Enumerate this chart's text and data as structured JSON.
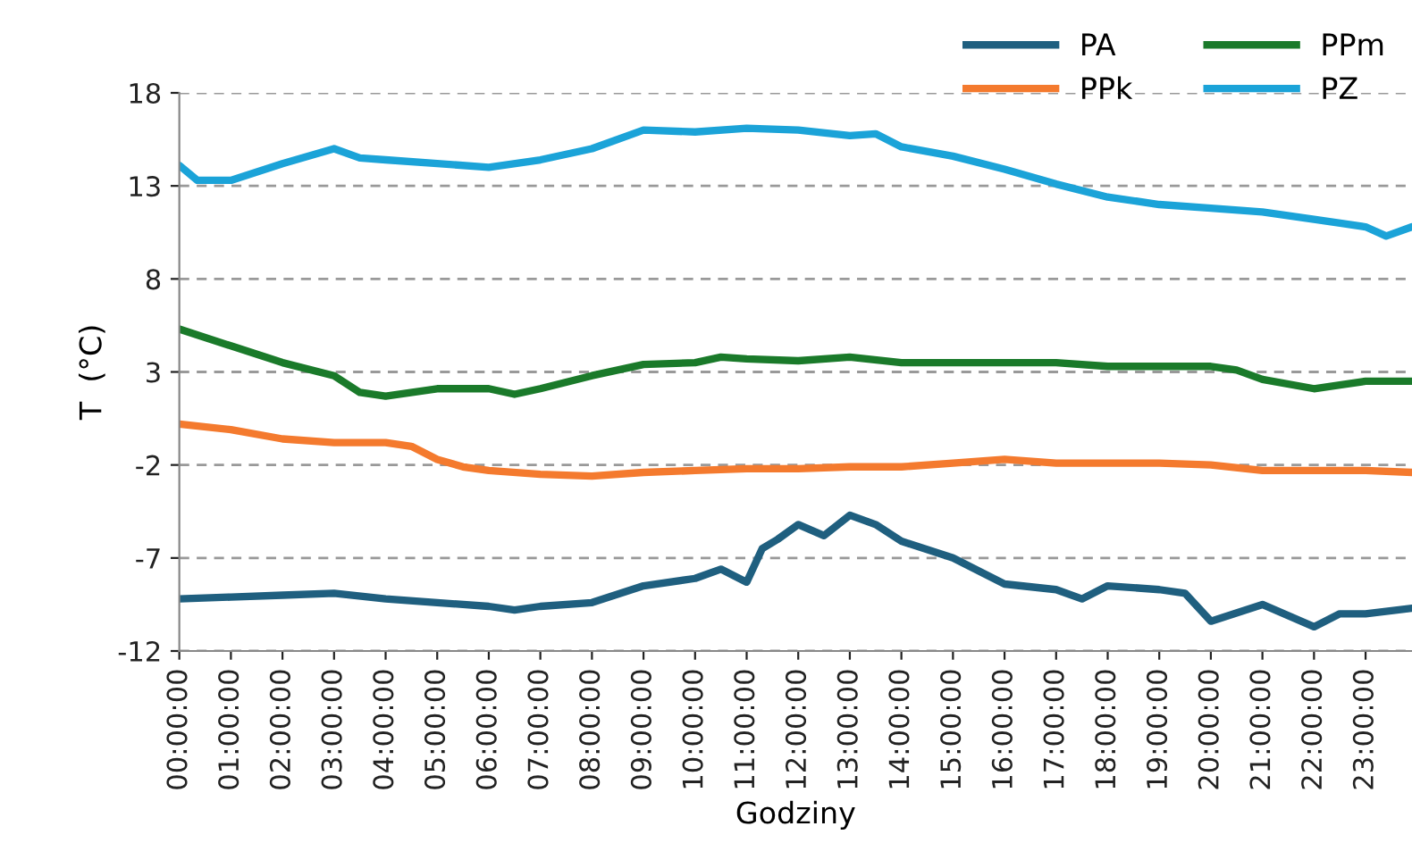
{
  "chart_data": {
    "type": "line",
    "xlabel": "Godziny",
    "ylabel": "T  (°C)",
    "xlim": [
      0,
      23.9
    ],
    "ylim": [
      -12,
      18
    ],
    "yticks": [
      -12,
      -7,
      -2,
      3,
      8,
      13,
      18
    ],
    "xticks": [
      {
        "value": 0,
        "label": "00:00:00"
      },
      {
        "value": 1,
        "label": "01:00:00"
      },
      {
        "value": 2,
        "label": "02:00:00"
      },
      {
        "value": 3,
        "label": "03:00:00"
      },
      {
        "value": 4,
        "label": "04:00:00"
      },
      {
        "value": 5,
        "label": "05:00:00"
      },
      {
        "value": 6,
        "label": "06:00:00"
      },
      {
        "value": 7,
        "label": "07:00:00"
      },
      {
        "value": 8,
        "label": "08:00:00"
      },
      {
        "value": 9,
        "label": "09:00:00"
      },
      {
        "value": 10,
        "label": "10:00:00"
      },
      {
        "value": 11,
        "label": "11:00:00"
      },
      {
        "value": 12,
        "label": "12:00:00"
      },
      {
        "value": 13,
        "label": "13:00:00"
      },
      {
        "value": 14,
        "label": "14:00:00"
      },
      {
        "value": 15,
        "label": "15:00:00"
      },
      {
        "value": 16,
        "label": "16:00:00"
      },
      {
        "value": 17,
        "label": "17:00:00"
      },
      {
        "value": 18,
        "label": "18:00:00"
      },
      {
        "value": 19,
        "label": "19:00:00"
      },
      {
        "value": 20,
        "label": "20:00:00"
      },
      {
        "value": 21,
        "label": "21:00:00"
      },
      {
        "value": 22,
        "label": "22:00:00"
      },
      {
        "value": 23,
        "label": "23:00:00"
      }
    ],
    "grid": "y",
    "legend": "top right",
    "marker": "none",
    "line_style": "solid",
    "series": [
      {
        "name": "PA",
        "color": "#1f5f7f",
        "x": [
          0,
          1,
          2,
          3,
          4,
          5,
          6,
          6.5,
          7,
          8,
          9,
          10,
          10.5,
          11,
          11.3,
          11.6,
          12,
          12.5,
          13,
          13.5,
          14,
          15,
          16,
          17,
          17.5,
          18,
          19,
          19.5,
          20,
          21,
          22,
          22.5,
          23,
          23.9
        ],
        "values": [
          -9.2,
          -9.1,
          -9.0,
          -8.9,
          -9.2,
          -9.4,
          -9.6,
          -9.8,
          -9.6,
          -9.4,
          -8.5,
          -8.1,
          -7.6,
          -8.3,
          -6.5,
          -6.0,
          -5.2,
          -5.8,
          -4.7,
          -5.2,
          -6.1,
          -7.0,
          -8.4,
          -8.7,
          -9.2,
          -8.5,
          -8.7,
          -8.9,
          -10.4,
          -9.5,
          -10.7,
          -10.0,
          -10.0,
          -9.7
        ]
      },
      {
        "name": "PPk",
        "color": "#f47a2e",
        "x": [
          0,
          1,
          2,
          3,
          4,
          4.5,
          5,
          5.5,
          6,
          7,
          8,
          9,
          10,
          11,
          12,
          13,
          14,
          15,
          16,
          17,
          18,
          19,
          20,
          21,
          22,
          23,
          23.9
        ],
        "values": [
          0.2,
          -0.1,
          -0.6,
          -0.8,
          -0.8,
          -1.0,
          -1.7,
          -2.1,
          -2.3,
          -2.5,
          -2.6,
          -2.4,
          -2.3,
          -2.2,
          -2.2,
          -2.1,
          -2.1,
          -1.9,
          -1.7,
          -1.9,
          -1.9,
          -1.9,
          -2.0,
          -2.3,
          -2.3,
          -2.3,
          -2.4
        ]
      },
      {
        "name": "PPm",
        "color": "#1a7a2a",
        "x": [
          0,
          1,
          2,
          3,
          3.5,
          4,
          5,
          6,
          6.5,
          7,
          8,
          9,
          10,
          10.5,
          11,
          12,
          13,
          14,
          15,
          16,
          17,
          18,
          19,
          20,
          20.5,
          21,
          22,
          22.5,
          23,
          23.9
        ],
        "values": [
          5.3,
          4.4,
          3.5,
          2.8,
          1.9,
          1.7,
          2.1,
          2.1,
          1.8,
          2.1,
          2.8,
          3.4,
          3.5,
          3.8,
          3.7,
          3.6,
          3.8,
          3.5,
          3.5,
          3.5,
          3.5,
          3.3,
          3.3,
          3.3,
          3.1,
          2.6,
          2.1,
          2.3,
          2.5,
          2.5
        ]
      },
      {
        "name": "PZ",
        "color": "#1ba3d8",
        "x": [
          0,
          0.35,
          1,
          2,
          3,
          3.5,
          4,
          5,
          6,
          7,
          8,
          9,
          10,
          11,
          12,
          13,
          13.5,
          14,
          15,
          16,
          17,
          18,
          19,
          20,
          21,
          22,
          23,
          23.4,
          23.9
        ],
        "values": [
          14.1,
          13.3,
          13.3,
          14.2,
          15.0,
          14.5,
          14.4,
          14.2,
          14.0,
          14.4,
          15.0,
          16.0,
          15.9,
          16.1,
          16.0,
          15.7,
          15.8,
          15.1,
          14.6,
          13.9,
          13.1,
          12.4,
          12.0,
          11.8,
          11.6,
          11.2,
          10.8,
          10.3,
          10.8
        ]
      }
    ]
  }
}
